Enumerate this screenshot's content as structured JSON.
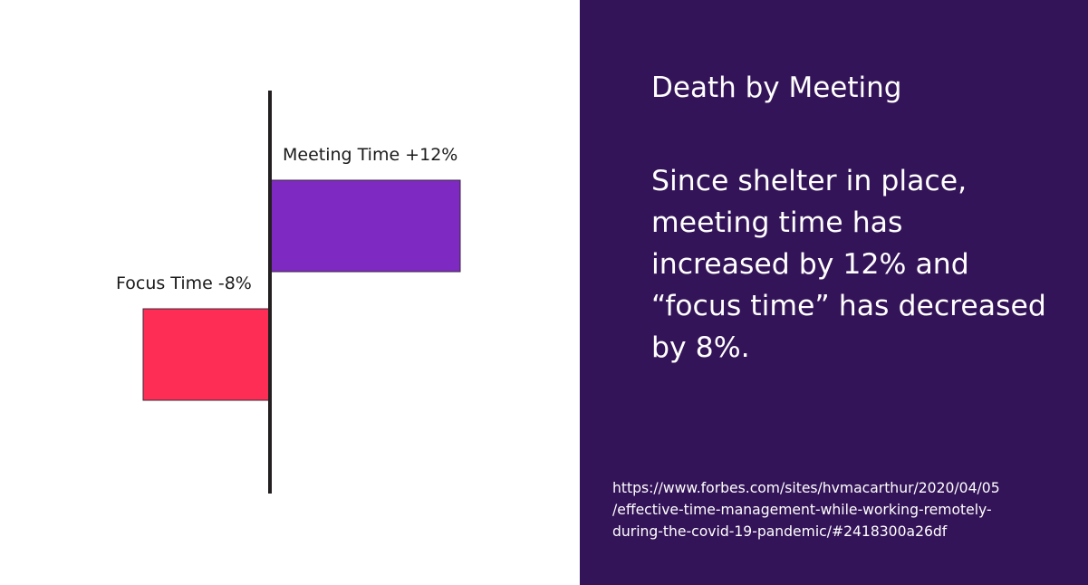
{
  "chart_data": {
    "type": "bar",
    "orientation": "horizontal",
    "categories": [
      "Meeting Time",
      "Focus Time"
    ],
    "values": [
      12,
      -8
    ],
    "unit": "%",
    "data_labels": [
      "Meeting Time +12%",
      "Focus Time -8%"
    ],
    "colors": [
      "#7e2ac2",
      "#fd2d55"
    ],
    "xlim": [
      -12,
      20
    ],
    "title": "",
    "xlabel": "",
    "ylabel": "",
    "grid": false,
    "axis_color": "#231f20"
  },
  "panel": {
    "title": "Death by Meeting",
    "body": "Since shelter in place, meeting time has increased by 12% and “focus time” has decreased by 8%.",
    "source_lines": [
      "https://www.forbes.com/sites/hvmacarthur/2020/04/05",
      "/effective-time-management-while-working-remotely-",
      "during-the-covid-19-pandemic/#2418300a26df"
    ],
    "background_color": "#341458",
    "text_color": "#ffffff"
  }
}
